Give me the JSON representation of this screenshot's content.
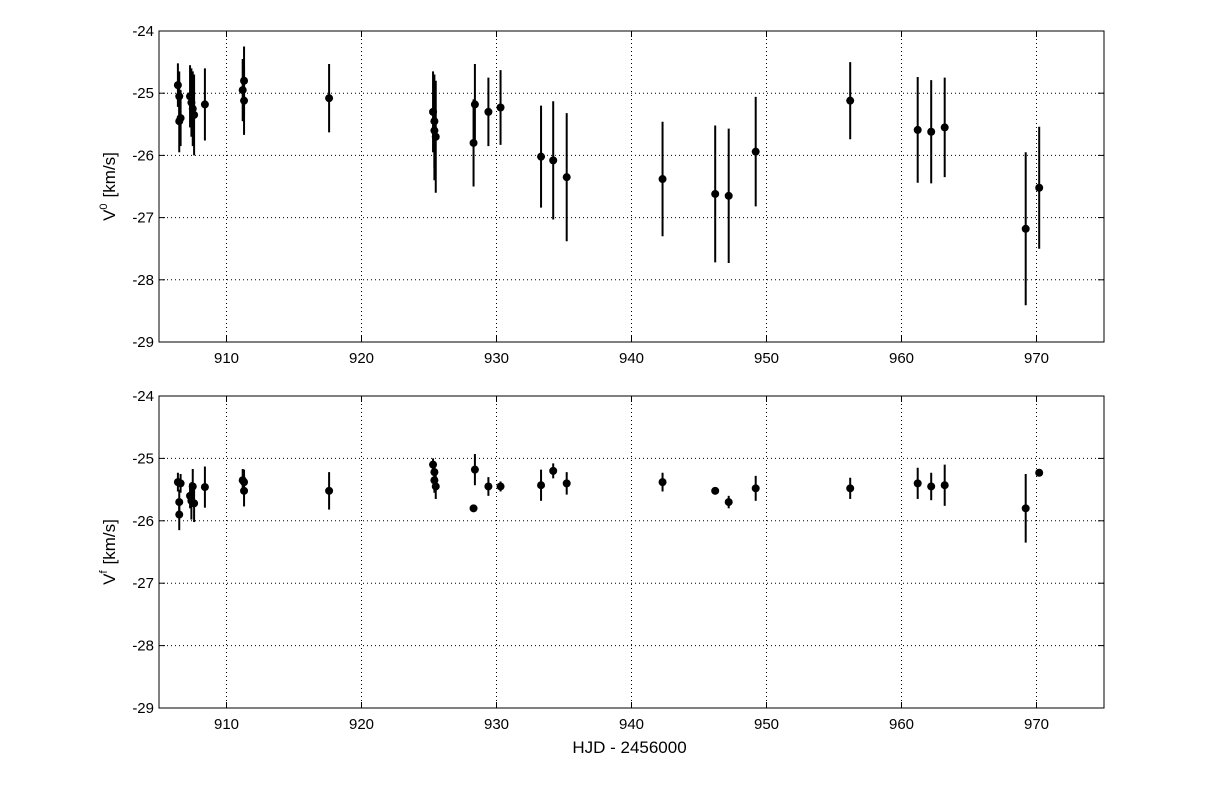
{
  "chart_data": [
    {
      "type": "scatter",
      "title": "",
      "xlabel": "",
      "ylabel_main": "V",
      "ylabel_sup": "0",
      "ylabel_unit": "[km/s]",
      "xlim": [
        905,
        975
      ],
      "ylim": [
        -29,
        -24
      ],
      "xticks": [
        910,
        920,
        930,
        940,
        950,
        960,
        970
      ],
      "yticks": [
        -29,
        -28,
        -27,
        -26,
        -25,
        -24
      ],
      "grid": true,
      "points": [
        {
          "x": 906.4,
          "y": -24.87,
          "err": 0.35
        },
        {
          "x": 906.5,
          "y": -25.05,
          "err": 0.4
        },
        {
          "x": 906.5,
          "y": -25.45,
          "err": 0.5
        },
        {
          "x": 906.6,
          "y": -25.4,
          "err": 0.45
        },
        {
          "x": 907.3,
          "y": -25.05,
          "err": 0.5
        },
        {
          "x": 907.4,
          "y": -25.15,
          "err": 0.55
        },
        {
          "x": 907.5,
          "y": -25.25,
          "err": 0.6
        },
        {
          "x": 907.6,
          "y": -25.35,
          "err": 0.65
        },
        {
          "x": 908.4,
          "y": -25.18,
          "err": 0.58
        },
        {
          "x": 911.2,
          "y": -24.95,
          "err": 0.5
        },
        {
          "x": 911.3,
          "y": -24.8,
          "err": 0.55
        },
        {
          "x": 911.3,
          "y": -25.12,
          "err": 0.55
        },
        {
          "x": 917.6,
          "y": -25.08,
          "err": 0.55
        },
        {
          "x": 925.3,
          "y": -25.3,
          "err": 0.65
        },
        {
          "x": 925.4,
          "y": -25.45,
          "err": 0.75
        },
        {
          "x": 925.4,
          "y": -25.6,
          "err": 0.8
        },
        {
          "x": 925.5,
          "y": -25.7,
          "err": 0.9
        },
        {
          "x": 928.3,
          "y": -25.8,
          "err": 0.7
        },
        {
          "x": 928.4,
          "y": -25.18,
          "err": 0.65
        },
        {
          "x": 929.4,
          "y": -25.3,
          "err": 0.55
        },
        {
          "x": 930.3,
          "y": -25.23,
          "err": 0.6
        },
        {
          "x": 933.3,
          "y": -26.02,
          "err": 0.82
        },
        {
          "x": 934.2,
          "y": -26.08,
          "err": 0.95
        },
        {
          "x": 935.2,
          "y": -26.35,
          "err": 1.03
        },
        {
          "x": 942.3,
          "y": -26.38,
          "err": 0.92
        },
        {
          "x": 946.2,
          "y": -26.62,
          "err": 1.1
        },
        {
          "x": 947.2,
          "y": -26.65,
          "err": 1.08
        },
        {
          "x": 949.2,
          "y": -25.94,
          "err": 0.88
        },
        {
          "x": 956.2,
          "y": -25.12,
          "err": 0.62
        },
        {
          "x": 961.2,
          "y": -25.59,
          "err": 0.85
        },
        {
          "x": 962.2,
          "y": -25.62,
          "err": 0.83
        },
        {
          "x": 963.2,
          "y": -25.55,
          "err": 0.8
        },
        {
          "x": 969.2,
          "y": -27.18,
          "err": 1.23
        },
        {
          "x": 970.2,
          "y": -26.52,
          "err": 0.98
        }
      ]
    },
    {
      "type": "scatter",
      "title": "",
      "xlabel": "HJD - 2456000",
      "ylabel_main": "V",
      "ylabel_sup": "f",
      "ylabel_unit": "[km/s]",
      "xlim": [
        905,
        975
      ],
      "ylim": [
        -29,
        -24
      ],
      "xticks": [
        910,
        920,
        930,
        940,
        950,
        960,
        970
      ],
      "yticks": [
        -29,
        -28,
        -27,
        -26,
        -25,
        -24
      ],
      "grid": true,
      "points": [
        {
          "x": 906.4,
          "y": -25.38,
          "err": 0.15
        },
        {
          "x": 906.5,
          "y": -25.7,
          "err": 0.2
        },
        {
          "x": 906.5,
          "y": -25.9,
          "err": 0.25
        },
        {
          "x": 906.6,
          "y": -25.4,
          "err": 0.15
        },
        {
          "x": 907.3,
          "y": -25.6,
          "err": 0.2
        },
        {
          "x": 907.4,
          "y": -25.68,
          "err": 0.3
        },
        {
          "x": 907.5,
          "y": -25.45,
          "err": 0.28
        },
        {
          "x": 907.6,
          "y": -25.72,
          "err": 0.3
        },
        {
          "x": 908.4,
          "y": -25.46,
          "err": 0.33
        },
        {
          "x": 911.2,
          "y": -25.35,
          "err": 0.18
        },
        {
          "x": 911.3,
          "y": -25.52,
          "err": 0.25
        },
        {
          "x": 911.3,
          "y": -25.38,
          "err": 0.2
        },
        {
          "x": 917.6,
          "y": -25.52,
          "err": 0.3
        },
        {
          "x": 925.3,
          "y": -25.1,
          "err": 0.1
        },
        {
          "x": 925.4,
          "y": -25.22,
          "err": 0.15
        },
        {
          "x": 925.4,
          "y": -25.35,
          "err": 0.2
        },
        {
          "x": 925.5,
          "y": -25.45,
          "err": 0.2
        },
        {
          "x": 928.3,
          "y": -25.8,
          "err": 0.05
        },
        {
          "x": 928.4,
          "y": -25.18,
          "err": 0.25
        },
        {
          "x": 929.4,
          "y": -25.45,
          "err": 0.15
        },
        {
          "x": 930.3,
          "y": -25.45,
          "err": 0.08
        },
        {
          "x": 933.3,
          "y": -25.43,
          "err": 0.25
        },
        {
          "x": 934.2,
          "y": -25.2,
          "err": 0.12
        },
        {
          "x": 935.2,
          "y": -25.4,
          "err": 0.18
        },
        {
          "x": 942.3,
          "y": -25.38,
          "err": 0.15
        },
        {
          "x": 946.2,
          "y": -25.52,
          "err": 0.05
        },
        {
          "x": 947.2,
          "y": -25.7,
          "err": 0.1
        },
        {
          "x": 949.2,
          "y": -25.48,
          "err": 0.2
        },
        {
          "x": 956.2,
          "y": -25.48,
          "err": 0.17
        },
        {
          "x": 961.2,
          "y": -25.4,
          "err": 0.25
        },
        {
          "x": 962.2,
          "y": -25.45,
          "err": 0.22
        },
        {
          "x": 963.2,
          "y": -25.43,
          "err": 0.33
        },
        {
          "x": 969.2,
          "y": -25.8,
          "err": 0.55
        },
        {
          "x": 970.2,
          "y": -25.23,
          "err": 0.06
        }
      ]
    }
  ]
}
